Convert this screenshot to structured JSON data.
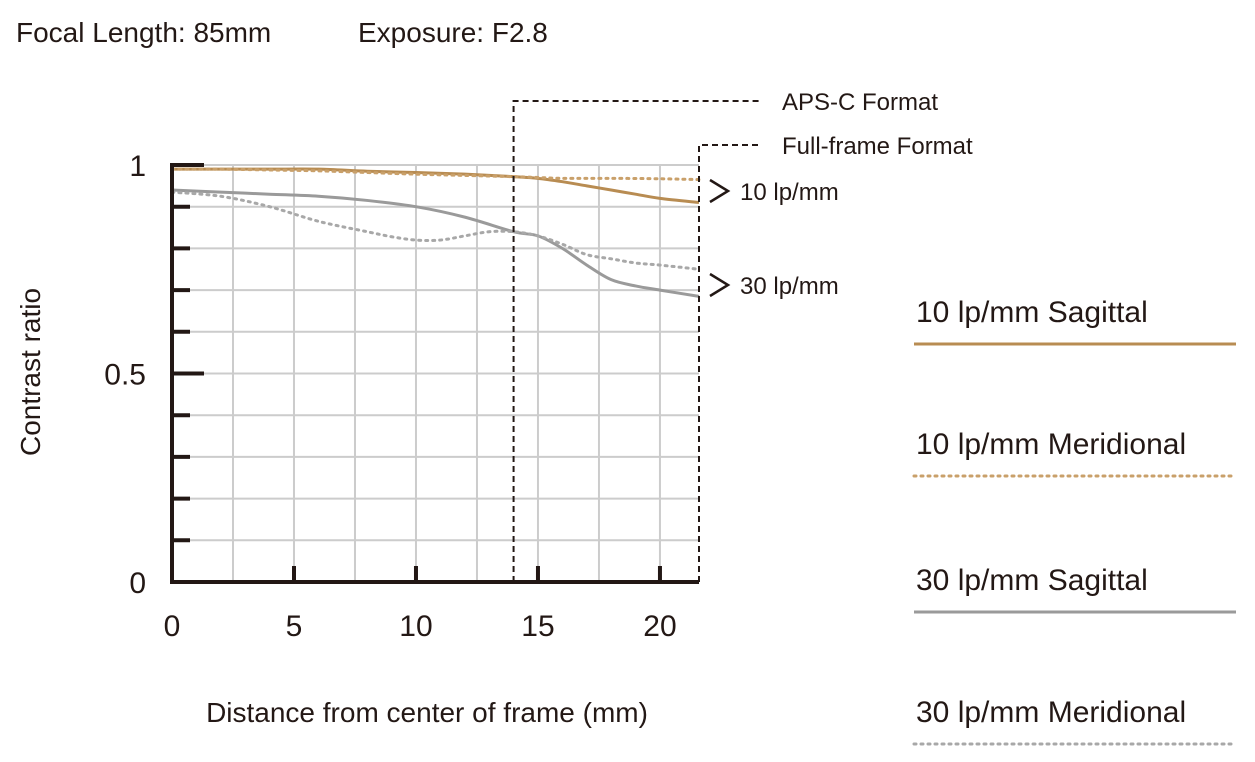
{
  "header": {
    "focal_length": "Focal Length: 85mm",
    "exposure": "Exposure: F2.8"
  },
  "colors": {
    "sagittal_10": "#b88c52",
    "meridional_10": "#c9a06a",
    "sagittal_30": "#9a9a9a",
    "meridional_30": "#a8a8a8",
    "grid": "#cccccc",
    "axis": "#231815"
  },
  "chart_data": {
    "type": "line",
    "xlabel": "Distance from center of frame (mm)",
    "ylabel": "Contrast ratio",
    "xlim": [
      0,
      21.6
    ],
    "ylim": [
      0,
      1
    ],
    "x_ticks": [
      0,
      5,
      10,
      15,
      20
    ],
    "x_tick_labels": [
      "0",
      "5",
      "10",
      "15",
      "20"
    ],
    "y_ticks": [
      0,
      0.5,
      1
    ],
    "y_tick_labels": [
      "0",
      "0.5",
      "1"
    ],
    "grid": true,
    "series": [
      {
        "name": "10 lp/mm Sagittal",
        "style": "solid",
        "color": "#b88c52",
        "x": [
          0,
          2,
          4,
          6,
          8,
          10,
          12,
          14,
          15,
          16,
          17,
          18,
          19,
          20,
          21.6
        ],
        "y": [
          0.99,
          0.99,
          0.99,
          0.99,
          0.985,
          0.982,
          0.978,
          0.972,
          0.968,
          0.96,
          0.95,
          0.94,
          0.93,
          0.92,
          0.91
        ]
      },
      {
        "name": "10 lp/mm Meridional",
        "style": "dotted",
        "color": "#c9a06a",
        "x": [
          0,
          2,
          4,
          6,
          8,
          10,
          12,
          14,
          15,
          16,
          18,
          20,
          21.6
        ],
        "y": [
          0.99,
          0.99,
          0.988,
          0.986,
          0.982,
          0.978,
          0.975,
          0.972,
          0.97,
          0.968,
          0.968,
          0.967,
          0.965
        ]
      },
      {
        "name": "30 lp/mm Sagittal",
        "style": "solid",
        "color": "#9a9a9a",
        "x": [
          0,
          2,
          4,
          6,
          8,
          10,
          12,
          14,
          15,
          16,
          17,
          18,
          19,
          20,
          21.6
        ],
        "y": [
          0.94,
          0.935,
          0.93,
          0.925,
          0.915,
          0.9,
          0.875,
          0.84,
          0.83,
          0.8,
          0.76,
          0.725,
          0.71,
          0.7,
          0.685
        ]
      },
      {
        "name": "30 lp/mm Meridional",
        "style": "dotted",
        "color": "#a8a8a8",
        "x": [
          0,
          2,
          4,
          6,
          8,
          9,
          10,
          11,
          12,
          13,
          14,
          15,
          16,
          17,
          18,
          19,
          20,
          21.6
        ],
        "y": [
          0.935,
          0.925,
          0.9,
          0.865,
          0.84,
          0.828,
          0.82,
          0.82,
          0.83,
          0.84,
          0.84,
          0.83,
          0.81,
          0.785,
          0.775,
          0.765,
          0.76,
          0.75
        ]
      }
    ],
    "format_markers": [
      {
        "label": "APS-C Format",
        "x": 14.0
      },
      {
        "label": "Full-frame Format",
        "x": 21.6
      }
    ],
    "group_labels": [
      "10 lp/mm",
      "30 lp/mm"
    ],
    "legend": [
      {
        "label": "10 lp/mm Sagittal",
        "style": "solid",
        "color": "#b88c52"
      },
      {
        "label": "10 lp/mm Meridional",
        "style": "dotted",
        "color": "#c9a06a"
      },
      {
        "label": "30 lp/mm Sagittal",
        "style": "solid",
        "color": "#9a9a9a"
      },
      {
        "label": "30 lp/mm Meridional",
        "style": "dotted",
        "color": "#a8a8a8"
      }
    ]
  }
}
